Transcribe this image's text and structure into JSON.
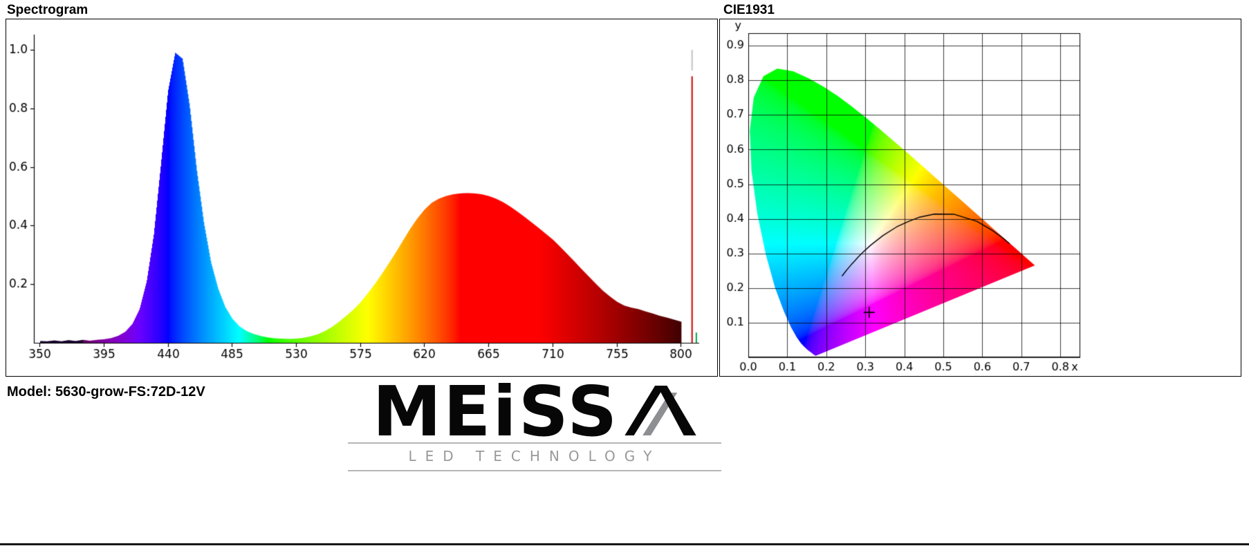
{
  "header": {
    "spectrogram_title": "Spectrogram",
    "cie_title": "CIE1931"
  },
  "footer": {
    "model_label": "Model: 5630-grow-FS:72D-12V",
    "logo_main": "MEiSS",
    "logo_a": "A",
    "logo_tagline": "LED TECHNOLOGY"
  },
  "chart_data": [
    {
      "type": "area",
      "title": "Spectrogram",
      "color_mode": "wavelength-spectrum",
      "xlim": [
        346,
        813
      ],
      "ylim": [
        0,
        1.01
      ],
      "x_ticks": [
        350,
        395,
        440,
        485,
        530,
        575,
        620,
        665,
        710,
        755,
        800
      ],
      "y_ticks": [
        "0.2",
        "0.4",
        "0.6",
        "0.8",
        "1.0"
      ],
      "x": [
        350,
        355,
        360,
        365,
        370,
        375,
        380,
        385,
        390,
        395,
        400,
        405,
        410,
        415,
        420,
        425,
        430,
        435,
        440,
        445,
        450,
        455,
        460,
        465,
        470,
        475,
        480,
        485,
        490,
        495,
        500,
        505,
        510,
        515,
        520,
        525,
        530,
        535,
        540,
        545,
        550,
        555,
        560,
        565,
        570,
        575,
        580,
        585,
        590,
        595,
        600,
        605,
        610,
        615,
        620,
        625,
        630,
        635,
        640,
        645,
        650,
        655,
        660,
        665,
        670,
        675,
        680,
        685,
        690,
        695,
        700,
        705,
        710,
        715,
        720,
        725,
        730,
        735,
        740,
        745,
        750,
        755,
        760,
        765,
        770,
        775,
        780,
        785,
        790,
        795,
        800
      ],
      "values": [
        0.006,
        0.005,
        0.008,
        0.005,
        0.009,
        0.006,
        0.01,
        0.007,
        0.01,
        0.012,
        0.016,
        0.024,
        0.038,
        0.065,
        0.115,
        0.21,
        0.37,
        0.61,
        0.86,
        0.99,
        0.97,
        0.81,
        0.59,
        0.41,
        0.275,
        0.185,
        0.122,
        0.082,
        0.056,
        0.04,
        0.03,
        0.023,
        0.018,
        0.015,
        0.014,
        0.013,
        0.014,
        0.017,
        0.022,
        0.029,
        0.04,
        0.054,
        0.072,
        0.092,
        0.113,
        0.138,
        0.168,
        0.2,
        0.235,
        0.272,
        0.31,
        0.35,
        0.39,
        0.425,
        0.455,
        0.478,
        0.492,
        0.501,
        0.507,
        0.51,
        0.511,
        0.51,
        0.507,
        0.501,
        0.492,
        0.48,
        0.465,
        0.448,
        0.43,
        0.411,
        0.392,
        0.372,
        0.352,
        0.328,
        0.303,
        0.278,
        0.252,
        0.227,
        0.202,
        0.178,
        0.158,
        0.14,
        0.127,
        0.12,
        0.115,
        0.107,
        0.1,
        0.092,
        0.086,
        0.079,
        0.072
      ],
      "peaks": [
        {
          "wavelength": 447,
          "value": 1.0
        },
        {
          "wavelength": 655,
          "value": 0.51
        }
      ],
      "spikes": [
        {
          "x": 808,
          "v0": 0,
          "v1": 0.91,
          "color": "#cc0000"
        },
        {
          "x": 808,
          "v0": 0.93,
          "v1": 1.0,
          "color": "#c2c2c2"
        },
        {
          "x": 811,
          "v0": 0,
          "v1": 0.035,
          "color": "#00a651"
        }
      ]
    },
    {
      "type": "cie1931",
      "title": "CIE1931",
      "x_axis_label": "x",
      "y_axis_label": "y",
      "x_ticks": [
        "0.0",
        "0.1",
        "0.2",
        "0.3",
        "0.4",
        "0.5",
        "0.6",
        "0.7",
        "0.8"
      ],
      "y_ticks": [
        "0.1",
        "0.2",
        "0.3",
        "0.4",
        "0.5",
        "0.6",
        "0.7",
        "0.8",
        "0.9"
      ],
      "xlim": [
        0,
        0.851
      ],
      "ylim": [
        0,
        0.936
      ],
      "grid": true,
      "planckian_locus": true,
      "marker": {
        "x": 0.31,
        "y": 0.13,
        "shape": "cross"
      }
    }
  ]
}
